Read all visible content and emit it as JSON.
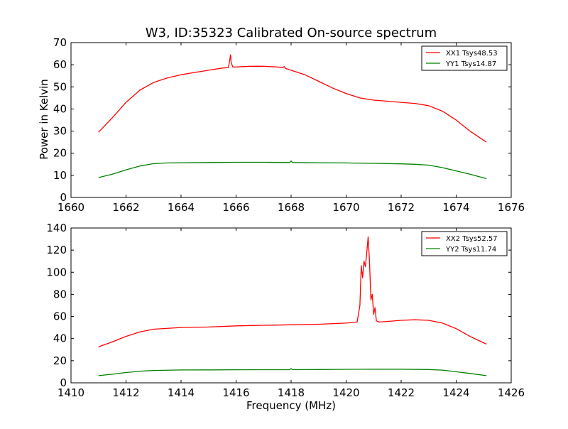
{
  "figure": {
    "title": "W3, ID:35323 Calibrated On-source spectrum",
    "ylabel": "Power in Kelvin",
    "xlabel": "Frequency (MHz)"
  },
  "chart_data": [
    {
      "type": "line",
      "title": "W3, ID:35323 Calibrated On-source spectrum",
      "xlabel": "",
      "ylabel": "Power in Kelvin",
      "xlim": [
        1660,
        1676
      ],
      "ylim": [
        0,
        70
      ],
      "xticks": [
        1660,
        1662,
        1664,
        1666,
        1668,
        1670,
        1672,
        1674,
        1676
      ],
      "yticks": [
        0,
        10,
        20,
        30,
        40,
        50,
        60,
        70
      ],
      "grid": false,
      "legend": "top-right",
      "series": [
        {
          "name": "XX1 Tsys48.53",
          "color": "#ff0000",
          "x": [
            1661.0,
            1661.5,
            1662.0,
            1662.5,
            1663.0,
            1663.5,
            1664.0,
            1664.5,
            1665.0,
            1665.5,
            1665.72,
            1665.78,
            1665.8,
            1665.82,
            1665.88,
            1666.0,
            1666.5,
            1667.0,
            1667.5,
            1667.7,
            1667.75,
            1667.8,
            1668.0,
            1668.5,
            1669.0,
            1669.5,
            1670.0,
            1670.5,
            1671.0,
            1671.5,
            1672.0,
            1672.5,
            1673.0,
            1673.5,
            1674.0,
            1674.5,
            1675.1
          ],
          "y": [
            29.5,
            36.0,
            43.0,
            48.5,
            52.0,
            54.0,
            55.5,
            56.5,
            57.5,
            58.5,
            58.7,
            63.0,
            64.5,
            61.0,
            59.0,
            59.0,
            59.3,
            59.3,
            59.0,
            58.7,
            59.2,
            58.3,
            57.5,
            55.5,
            52.5,
            49.5,
            47.0,
            45.0,
            44.0,
            43.5,
            43.0,
            42.5,
            41.5,
            39.0,
            35.0,
            30.0,
            25.0
          ]
        },
        {
          "name": "YY1 Tsys14.87",
          "color": "#008000",
          "x": [
            1661.0,
            1661.5,
            1662.0,
            1662.5,
            1663.0,
            1663.5,
            1664.0,
            1665.0,
            1666.0,
            1667.0,
            1667.95,
            1668.0,
            1668.05,
            1669.0,
            1670.0,
            1671.0,
            1672.0,
            1672.5,
            1673.0,
            1673.5,
            1674.0,
            1674.5,
            1675.1
          ],
          "y": [
            9.0,
            10.5,
            12.5,
            14.2,
            15.3,
            15.6,
            15.7,
            15.8,
            15.9,
            15.9,
            15.8,
            16.5,
            15.8,
            15.7,
            15.6,
            15.4,
            15.2,
            15.0,
            14.6,
            13.5,
            12.0,
            10.5,
            8.5
          ]
        }
      ]
    },
    {
      "type": "line",
      "title": "",
      "xlabel": "Frequency (MHz)",
      "ylabel": "",
      "xlim": [
        1410,
        1426
      ],
      "ylim": [
        0,
        140
      ],
      "xticks": [
        1410,
        1412,
        1414,
        1416,
        1418,
        1420,
        1422,
        1424,
        1426
      ],
      "yticks": [
        0,
        20,
        40,
        60,
        80,
        100,
        120,
        140
      ],
      "grid": false,
      "legend": "top-right",
      "series": [
        {
          "name": "XX2 Tsys52.57",
          "color": "#ff0000",
          "x": [
            1411.0,
            1411.5,
            1412.0,
            1412.5,
            1413.0,
            1414.0,
            1415.0,
            1416.0,
            1417.0,
            1418.0,
            1419.0,
            1420.0,
            1420.4,
            1420.5,
            1420.55,
            1420.6,
            1420.65,
            1420.7,
            1420.75,
            1420.8,
            1420.85,
            1420.9,
            1420.95,
            1421.0,
            1421.05,
            1421.1,
            1421.2,
            1421.5,
            1422.0,
            1422.5,
            1423.0,
            1423.5,
            1424.0,
            1424.5,
            1425.1
          ],
          "y": [
            32.5,
            37.0,
            42.0,
            46.0,
            48.5,
            50.0,
            50.5,
            51.5,
            52.0,
            52.5,
            53.0,
            54.0,
            55.0,
            70.0,
            106.0,
            95.0,
            110.0,
            105.0,
            118.0,
            132.0,
            110.0,
            75.0,
            80.0,
            62.0,
            68.0,
            56.0,
            55.0,
            55.5,
            56.5,
            57.0,
            56.5,
            54.0,
            49.0,
            42.0,
            35.0
          ]
        },
        {
          "name": "YY2 Tsys11.74",
          "color": "#008000",
          "x": [
            1411.0,
            1411.5,
            1412.0,
            1412.5,
            1413.0,
            1414.0,
            1415.0,
            1416.0,
            1417.0,
            1417.95,
            1418.0,
            1418.05,
            1419.0,
            1420.0,
            1421.0,
            1422.0,
            1423.0,
            1423.5,
            1424.0,
            1424.5,
            1425.1
          ],
          "y": [
            6.5,
            7.8,
            9.3,
            10.5,
            11.2,
            11.6,
            11.7,
            11.8,
            11.9,
            11.9,
            13.0,
            11.9,
            12.0,
            12.2,
            12.3,
            12.3,
            12.0,
            11.5,
            10.0,
            8.5,
            6.5
          ]
        }
      ]
    }
  ]
}
